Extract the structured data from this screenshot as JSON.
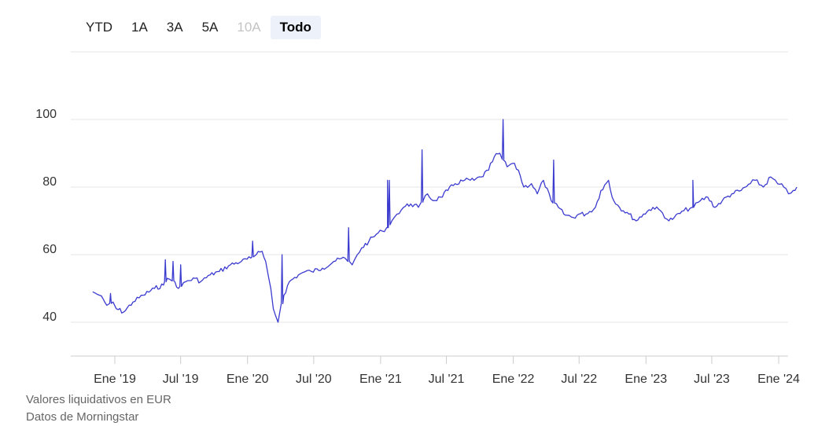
{
  "range_selector": {
    "buttons": [
      {
        "label": "YTD",
        "state": "normal"
      },
      {
        "label": "1A",
        "state": "normal"
      },
      {
        "label": "3A",
        "state": "normal"
      },
      {
        "label": "5A",
        "state": "normal"
      },
      {
        "label": "10A",
        "state": "disabled"
      },
      {
        "label": "Todo",
        "state": "active"
      }
    ]
  },
  "footer": {
    "line1": "Valores liquidativos en EUR",
    "line2": "Datos de Morningstar"
  },
  "colors": {
    "series": "#3b3bcf",
    "grid": "#e6e6e6",
    "axis": "#cccccc"
  },
  "chart_data": {
    "type": "line",
    "title": "",
    "xlabel": "",
    "ylabel": "",
    "ylim": [
      30,
      120
    ],
    "y_ticks": [
      40,
      60,
      80,
      100
    ],
    "y_tick_labels": [
      "40",
      "60",
      "80",
      "100"
    ],
    "x_ticks": [
      "Ene '19",
      "Jul '19",
      "Ene '20",
      "Jul '20",
      "Ene '21",
      "Jul '21",
      "Ene '22",
      "Jul '22",
      "Ene '23",
      "Jul '23",
      "Ene '24"
    ],
    "grid": true,
    "series": [
      {
        "name": "",
        "x": [
          "2018-11-01",
          "2018-11-20",
          "2018-12-10",
          "2018-12-27",
          "2019-01-05",
          "2019-01-25",
          "2019-02-20",
          "2019-03-20",
          "2019-04-20",
          "2019-05-15",
          "2019-05-25",
          "2019-06-15",
          "2019-06-25",
          "2019-07-15",
          "2019-08-10",
          "2019-08-25",
          "2019-09-20",
          "2019-10-15",
          "2019-11-15",
          "2019-12-15",
          "2020-01-10",
          "2020-01-25",
          "2020-02-10",
          "2020-02-20",
          "2020-03-05",
          "2020-03-12",
          "2020-03-18",
          "2020-03-25",
          "2020-04-10",
          "2020-04-25",
          "2020-05-20",
          "2020-06-08",
          "2020-06-25",
          "2020-07-25",
          "2020-08-25",
          "2020-09-25",
          "2020-10-15",
          "2020-10-29",
          "2020-11-10",
          "2020-11-30",
          "2020-12-20",
          "2021-01-05",
          "2021-01-20",
          "2021-02-01",
          "2021-02-15",
          "2021-03-05",
          "2021-03-25",
          "2021-04-15",
          "2021-04-28",
          "2021-05-10",
          "2021-05-25",
          "2021-06-15",
          "2021-07-05",
          "2021-07-25",
          "2021-08-20",
          "2021-09-15",
          "2021-10-05",
          "2021-10-25",
          "2021-11-10",
          "2021-11-25",
          "2021-12-05",
          "2021-12-15",
          "2021-12-30",
          "2022-01-15",
          "2022-01-30",
          "2022-02-20",
          "2022-03-08",
          "2022-03-25",
          "2022-04-15",
          "2022-05-05",
          "2022-05-20",
          "2022-06-15",
          "2022-06-30",
          "2022-07-20",
          "2022-08-15",
          "2022-08-30",
          "2022-09-20",
          "2022-09-30",
          "2022-10-20",
          "2022-11-15",
          "2022-12-05",
          "2022-12-25",
          "2023-01-20",
          "2023-02-10",
          "2023-03-05",
          "2023-03-20",
          "2023-04-15",
          "2023-05-10",
          "2023-05-31",
          "2023-06-20",
          "2023-07-10",
          "2023-07-30",
          "2023-08-25",
          "2023-09-20",
          "2023-10-15",
          "2023-10-28",
          "2023-11-20",
          "2023-12-10",
          "2023-12-29",
          "2024-01-15",
          "2024-01-28",
          "2024-02-10",
          "2024-02-20"
        ],
        "y": [
          49,
          48,
          45,
          46,
          44,
          43,
          46,
          48,
          50,
          51,
          53,
          52,
          50,
          52,
          53,
          52,
          54,
          55,
          57,
          58,
          59,
          60,
          61,
          58,
          50,
          44,
          42,
          40,
          48,
          52,
          54,
          55,
          55,
          56,
          58,
          59,
          57,
          60,
          62,
          64,
          66,
          67,
          68,
          70,
          72,
          74,
          75,
          74,
          76,
          78,
          76,
          77,
          79,
          81,
          82,
          82,
          83,
          85,
          89,
          90,
          88,
          86,
          87,
          85,
          80,
          81,
          78,
          82,
          76,
          74,
          72,
          71,
          72,
          72,
          74,
          79,
          82,
          77,
          74,
          72,
          70,
          72,
          74,
          73,
          70,
          71,
          73,
          74,
          76,
          77,
          74,
          76,
          78,
          79,
          81,
          82,
          80,
          83,
          81,
          80,
          78,
          79,
          80
        ]
      }
    ],
    "spikes": [
      {
        "x": "2018-12-20",
        "y": 48.5
      },
      {
        "x": "2019-05-20",
        "y": 58.5
      },
      {
        "x": "2019-06-10",
        "y": 58
      },
      {
        "x": "2019-07-01",
        "y": 57
      },
      {
        "x": "2020-01-15",
        "y": 64
      },
      {
        "x": "2020-04-05",
        "y": 60
      },
      {
        "x": "2020-10-05",
        "y": 68
      },
      {
        "x": "2021-01-20",
        "y": 82
      },
      {
        "x": "2021-01-25",
        "y": 82
      },
      {
        "x": "2021-04-25",
        "y": 91
      },
      {
        "x": "2021-12-04",
        "y": 100
      },
      {
        "x": "2022-04-22",
        "y": 88
      },
      {
        "x": "2023-05-10",
        "y": 82
      }
    ]
  }
}
